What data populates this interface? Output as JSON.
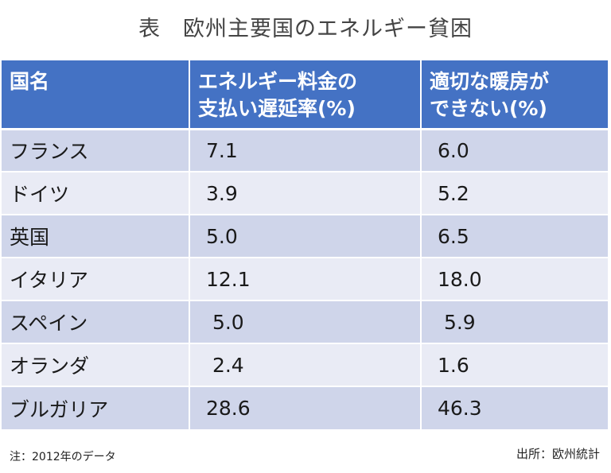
{
  "title": "表　欧州主要国のエネルギー貧困",
  "table": {
    "headers": [
      "国名",
      "エネルギー料金の\n支払い遅延率(%)",
      "適切な暖房が\nできない(%)"
    ],
    "rows": [
      {
        "country": "フランス",
        "late_payment": "7.1",
        "no_heating": "6.0"
      },
      {
        "country": "ドイツ",
        "late_payment": "3.9",
        "no_heating": "5.2"
      },
      {
        "country": "英国",
        "late_payment": "5.0",
        "no_heating": "6.5"
      },
      {
        "country": "イタリア",
        "late_payment": "12.1",
        "no_heating": "18.0"
      },
      {
        "country": "スペイン",
        "late_payment": " 5.0",
        "no_heating": " 5.9"
      },
      {
        "country": "オランダ",
        "late_payment": " 2.4",
        "no_heating": "1.6"
      },
      {
        "country": "ブルガリア",
        "late_payment": "28.6",
        "no_heating": "46.3"
      }
    ]
  },
  "note": "注：2012年のデータ",
  "source": "出所：欧州統計"
}
